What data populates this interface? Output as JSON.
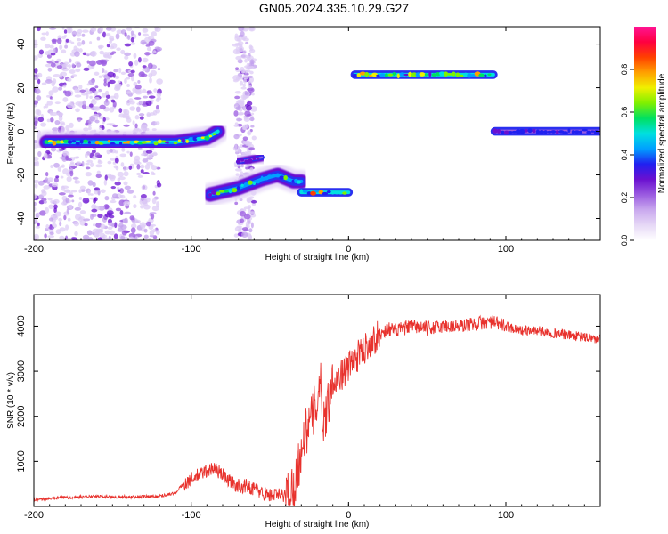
{
  "title": "GN05.2024.335.10.29.G27",
  "chart_data": [
    {
      "type": "heatmap",
      "xlabel": "Height of straight line (km)",
      "ylabel": "Frequency (Hz)",
      "xlim": [
        -200,
        160
      ],
      "ylim": [
        -50,
        48
      ],
      "x_ticks": [
        -200,
        -100,
        0,
        100
      ],
      "y_ticks": [
        40,
        20,
        0,
        -20,
        -40
      ],
      "colorbar": {
        "label": "Normalized spectral amplitude",
        "range": [
          0,
          1
        ],
        "ticks": [
          "0.0",
          "0.2",
          "0.4",
          "0.6",
          "0.8"
        ],
        "colors": [
          "#ffffff",
          "#e6d8f6",
          "#c9a8ee",
          "#9a5ae0",
          "#6a10d0",
          "#2020f0",
          "#00a0ff",
          "#00e0e0",
          "#00e060",
          "#80f000",
          "#f0f000",
          "#ffa000",
          "#ff4000",
          "#ff0040",
          "#ff1493"
        ]
      },
      "noise_regions": [
        {
          "x": [
            -200,
            -120
          ],
          "y": [
            -50,
            48
          ],
          "density": "high"
        },
        {
          "x": [
            -72,
            -60
          ],
          "y": [
            -50,
            48
          ],
          "density": "medium"
        }
      ],
      "tracks": [
        {
          "x": [
            -192,
            -110,
            -90,
            -83
          ],
          "y": [
            -5,
            -5,
            -3,
            0
          ],
          "peak": 0.8
        },
        {
          "x": [
            -88,
            -70,
            -55,
            -45,
            -35,
            -30
          ],
          "y": [
            -29,
            -26,
            -22,
            -20,
            -23,
            -23
          ],
          "peak": 0.7
        },
        {
          "x": [
            -70,
            -55
          ],
          "y": [
            -14,
            -12
          ],
          "peak": 0.3
        },
        {
          "x": [
            -30,
            0
          ],
          "y": [
            -28,
            -28
          ],
          "peak": 0.85
        },
        {
          "x": [
            4,
            92
          ],
          "y": [
            26,
            26
          ],
          "peak": 0.8
        },
        {
          "x": [
            93,
            160
          ],
          "y": [
            0,
            0
          ],
          "peak": 0.4
        }
      ]
    },
    {
      "type": "line",
      "xlabel": "Height of straight line (km)",
      "ylabel": "SNR (10 * v/v)",
      "xlim": [
        -200,
        160
      ],
      "ylim": [
        0,
        4700
      ],
      "x_ticks": [
        -200,
        -100,
        0,
        100
      ],
      "y_ticks": [
        1000,
        2000,
        3000,
        4000
      ],
      "series": [
        {
          "color": "#e8322d",
          "x": [
            -200,
            -180,
            -160,
            -140,
            -120,
            -110,
            -105,
            -100,
            -95,
            -90,
            -85,
            -80,
            -75,
            -70,
            -65,
            -60,
            -55,
            -50,
            -45,
            -40,
            -35,
            -32,
            -30,
            -28,
            -25,
            -22,
            -20,
            -18,
            -16,
            -14,
            -12,
            -10,
            -5,
            0,
            5,
            10,
            15,
            20,
            25,
            30,
            40,
            50,
            60,
            70,
            80,
            90,
            100,
            110,
            120,
            130,
            140,
            150,
            160
          ],
          "y": [
            150,
            200,
            220,
            210,
            230,
            300,
            500,
            600,
            700,
            800,
            850,
            700,
            550,
            450,
            450,
            400,
            300,
            250,
            250,
            250,
            400,
            900,
            1200,
            1600,
            1800,
            2100,
            2400,
            2800,
            1900,
            2100,
            2500,
            2800,
            2900,
            3100,
            3300,
            3500,
            3700,
            3800,
            3950,
            3900,
            4000,
            3950,
            4000,
            4000,
            4050,
            4100,
            4000,
            3900,
            3900,
            3850,
            3800,
            3750,
            3700
          ]
        }
      ]
    }
  ]
}
